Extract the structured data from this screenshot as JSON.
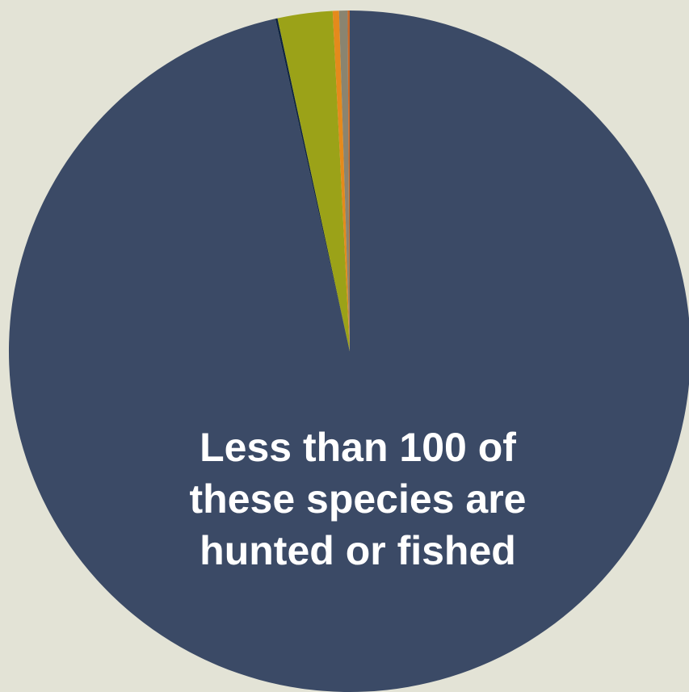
{
  "chart_data": {
    "type": "pie",
    "start_angle_deg": 0,
    "direction": "clockwise",
    "slices": [
      {
        "value": 96.5,
        "color": "#3b4a66"
      },
      {
        "value": 0.1,
        "color": "#0f2440"
      },
      {
        "value": 2.6,
        "color": "#9ba218"
      },
      {
        "value": 0.3,
        "color": "#e58a1c"
      },
      {
        "value": 0.4,
        "color": "#8a8470"
      },
      {
        "value": 0.1,
        "color": "#c96a2a"
      }
    ],
    "annotation": [
      "Less than 100 of",
      "these species are",
      "hunted or fished"
    ]
  },
  "background_color": "#e3e3d6"
}
